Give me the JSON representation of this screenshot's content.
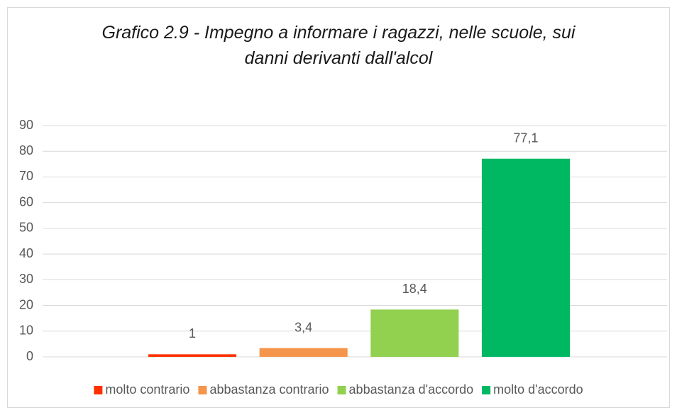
{
  "chart_data": {
    "type": "bar",
    "title": "Grafico 2.9 - Impegno a informare i ragazzi, nelle scuole, sui danni derivanti dall'alcol",
    "categories": [
      null
    ],
    "series": [
      {
        "name": "molto contrario",
        "color": "#ff3000",
        "values": [
          1
        ]
      },
      {
        "name": "abbastanza contrario",
        "color": "#f4954b",
        "values": [
          3.4
        ],
        "value_labels": [
          "3,4"
        ]
      },
      {
        "name": "abbastanza d'accordo",
        "color": "#92d050",
        "values": [
          18.4
        ],
        "value_labels": [
          "18,4"
        ]
      },
      {
        "name": "molto d'accordo",
        "color": "#00b862",
        "values": [
          77.1
        ],
        "value_labels": [
          "77,1"
        ]
      }
    ],
    "ylim": [
      0,
      90
    ],
    "yticks": [
      0,
      10,
      20,
      30,
      40,
      50,
      60,
      70,
      80,
      90
    ],
    "grid": true,
    "legend": "bottom"
  }
}
